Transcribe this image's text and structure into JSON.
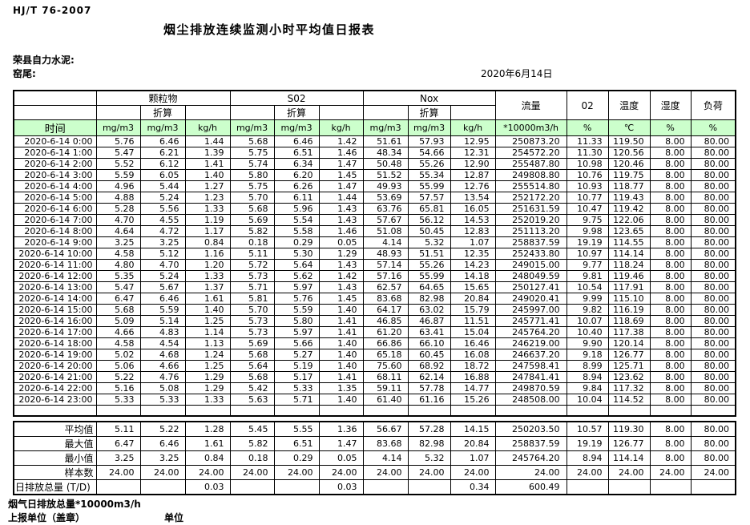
{
  "page": {
    "standard_code": "HJ/T  76-2007",
    "title": "烟尘排放连续监测小时平均值日报表",
    "company": "荣县自力水泥:",
    "site": "窑尾:",
    "date": "2020年6月14日"
  },
  "table": {
    "time_header": "时间",
    "groups": [
      {
        "label": "颗粒物",
        "sub": "折算"
      },
      {
        "label": "S02",
        "sub": "折算"
      },
      {
        "label": "Nox",
        "sub": "折算"
      }
    ],
    "single_columns": [
      "流量",
      "02",
      "温度",
      "湿度",
      "负荷"
    ],
    "units": [
      "mg/m3",
      "mg/m3",
      "kg/h",
      "mg/m3",
      "mg/m3",
      "kg/h",
      "mg/m3",
      "mg/m3",
      "kg/h",
      "*10000m3/h",
      "%",
      "℃",
      "%",
      "%"
    ],
    "rows": [
      {
        "time": "2020-6-14 0:00",
        "values": [
          "5.76",
          "6.46",
          "1.44",
          "5.68",
          "6.46",
          "1.42",
          "51.61",
          "57.93",
          "12.95",
          "250873.20",
          "11.33",
          "119.50",
          "8.00",
          "80.00"
        ]
      },
      {
        "time": "2020-6-14 1:00",
        "values": [
          "5.47",
          "6.21",
          "1.39",
          "5.75",
          "6.51",
          "1.46",
          "48.34",
          "54.66",
          "12.31",
          "254572.20",
          "11.30",
          "120.56",
          "8.00",
          "80.00"
        ]
      },
      {
        "time": "2020-6-14 2:00",
        "values": [
          "5.52",
          "6.12",
          "1.41",
          "5.74",
          "6.34",
          "1.47",
          "50.48",
          "55.26",
          "12.90",
          "255487.80",
          "10.98",
          "120.46",
          "8.00",
          "80.00"
        ]
      },
      {
        "time": "2020-6-14 3:00",
        "values": [
          "5.59",
          "6.05",
          "1.40",
          "5.80",
          "6.20",
          "1.45",
          "51.52",
          "55.34",
          "12.87",
          "249808.80",
          "10.76",
          "119.75",
          "8.00",
          "80.00"
        ]
      },
      {
        "time": "2020-6-14 4:00",
        "values": [
          "4.96",
          "5.44",
          "1.27",
          "5.75",
          "6.26",
          "1.47",
          "49.93",
          "55.99",
          "12.76",
          "255514.80",
          "10.93",
          "118.77",
          "8.00",
          "80.00"
        ]
      },
      {
        "time": "2020-6-14 5:00",
        "values": [
          "4.88",
          "5.24",
          "1.23",
          "5.70",
          "6.11",
          "1.44",
          "53.69",
          "57.57",
          "13.54",
          "252172.20",
          "10.77",
          "119.43",
          "8.00",
          "80.00"
        ]
      },
      {
        "time": "2020-6-14 6:00",
        "values": [
          "5.28",
          "5.56",
          "1.33",
          "5.68",
          "5.96",
          "1.43",
          "63.76",
          "65.81",
          "16.05",
          "251631.59",
          "10.47",
          "119.42",
          "8.00",
          "80.00"
        ]
      },
      {
        "time": "2020-6-14 7:00",
        "values": [
          "4.70",
          "4.55",
          "1.19",
          "5.69",
          "5.54",
          "1.43",
          "57.67",
          "56.12",
          "14.53",
          "252019.20",
          "9.75",
          "122.06",
          "8.00",
          "80.00"
        ]
      },
      {
        "time": "2020-6-14 8:00",
        "values": [
          "4.64",
          "4.72",
          "1.17",
          "5.82",
          "5.58",
          "1.46",
          "51.08",
          "50.45",
          "12.83",
          "251113.20",
          "9.98",
          "123.65",
          "8.00",
          "80.00"
        ]
      },
      {
        "time": "2020-6-14 9:00",
        "values": [
          "3.25",
          "3.25",
          "0.84",
          "0.18",
          "0.29",
          "0.05",
          "4.14",
          "5.32",
          "1.07",
          "258837.59",
          "19.19",
          "114.55",
          "8.00",
          "80.00"
        ]
      },
      {
        "time": "2020-6-14 10:00",
        "values": [
          "4.58",
          "5.12",
          "1.16",
          "5.11",
          "5.30",
          "1.29",
          "48.93",
          "51.51",
          "12.35",
          "252433.80",
          "10.97",
          "114.14",
          "8.00",
          "80.00"
        ]
      },
      {
        "time": "2020-6-14 11:00",
        "values": [
          "4.80",
          "4.70",
          "1.20",
          "5.72",
          "5.64",
          "1.43",
          "57.14",
          "55.26",
          "14.23",
          "249015.00",
          "9.77",
          "118.24",
          "8.00",
          "80.00"
        ]
      },
      {
        "time": "2020-6-14 12:00",
        "values": [
          "5.35",
          "5.24",
          "1.33",
          "5.73",
          "5.62",
          "1.42",
          "57.16",
          "55.99",
          "14.18",
          "248049.59",
          "9.81",
          "119.46",
          "8.00",
          "80.00"
        ]
      },
      {
        "time": "2020-6-14 13:00",
        "values": [
          "5.47",
          "5.67",
          "1.37",
          "5.71",
          "5.97",
          "1.43",
          "62.57",
          "64.65",
          "15.65",
          "250127.41",
          "10.54",
          "117.91",
          "8.00",
          "80.00"
        ]
      },
      {
        "time": "2020-6-14 14:00",
        "values": [
          "6.47",
          "6.46",
          "1.61",
          "5.81",
          "5.76",
          "1.45",
          "83.68",
          "82.98",
          "20.84",
          "249020.41",
          "9.99",
          "115.10",
          "8.00",
          "80.00"
        ]
      },
      {
        "time": "2020-6-14 15:00",
        "values": [
          "5.68",
          "5.59",
          "1.40",
          "5.70",
          "5.59",
          "1.40",
          "64.17",
          "63.02",
          "15.79",
          "245997.00",
          "9.82",
          "116.19",
          "8.00",
          "80.00"
        ]
      },
      {
        "time": "2020-6-14 16:00",
        "values": [
          "5.09",
          "5.14",
          "1.25",
          "5.73",
          "5.80",
          "1.41",
          "46.85",
          "46.87",
          "11.51",
          "245771.41",
          "10.07",
          "118.69",
          "8.00",
          "80.00"
        ]
      },
      {
        "time": "2020-6-14 17:00",
        "values": [
          "4.66",
          "4.83",
          "1.14",
          "5.73",
          "5.97",
          "1.41",
          "61.20",
          "63.41",
          "15.04",
          "245764.20",
          "10.40",
          "117.38",
          "8.00",
          "80.00"
        ]
      },
      {
        "time": "2020-6-14 18:00",
        "values": [
          "4.58",
          "4.54",
          "1.13",
          "5.69",
          "5.66",
          "1.40",
          "66.86",
          "66.10",
          "16.46",
          "246219.00",
          "9.90",
          "120.14",
          "8.00",
          "80.00"
        ]
      },
      {
        "time": "2020-6-14 19:00",
        "values": [
          "5.02",
          "4.68",
          "1.24",
          "5.68",
          "5.27",
          "1.40",
          "65.18",
          "60.45",
          "16.08",
          "246637.20",
          "9.18",
          "126.77",
          "8.00",
          "80.00"
        ]
      },
      {
        "time": "2020-6-14 20:00",
        "values": [
          "5.06",
          "4.66",
          "1.25",
          "5.64",
          "5.19",
          "1.40",
          "75.60",
          "68.92",
          "18.72",
          "247598.41",
          "8.99",
          "125.71",
          "8.00",
          "80.00"
        ]
      },
      {
        "time": "2020-6-14 21:00",
        "values": [
          "5.22",
          "4.76",
          "1.29",
          "5.68",
          "5.17",
          "1.41",
          "68.11",
          "62.14",
          "16.88",
          "247841.41",
          "8.94",
          "123.62",
          "8.00",
          "80.00"
        ]
      },
      {
        "time": "2020-6-14 22:00",
        "values": [
          "5.16",
          "5.08",
          "1.29",
          "5.42",
          "5.33",
          "1.35",
          "59.11",
          "57.78",
          "14.77",
          "249870.59",
          "9.84",
          "117.32",
          "8.00",
          "80.00"
        ]
      },
      {
        "time": "2020-6-14 23:00",
        "values": [
          "5.33",
          "5.33",
          "1.33",
          "5.63",
          "5.71",
          "1.40",
          "61.40",
          "61.16",
          "15.26",
          "248508.00",
          "10.04",
          "114.52",
          "8.00",
          "80.00"
        ]
      }
    ],
    "summary": [
      {
        "label": "平均值",
        "values": [
          "5.11",
          "5.22",
          "1.28",
          "5.45",
          "5.55",
          "1.36",
          "56.67",
          "57.28",
          "14.15",
          "250203.50",
          "10.57",
          "119.30",
          "8.00",
          "80.00"
        ]
      },
      {
        "label": "最大值",
        "values": [
          "6.47",
          "6.46",
          "1.61",
          "5.82",
          "6.51",
          "1.47",
          "83.68",
          "82.98",
          "20.84",
          "258837.59",
          "19.19",
          "126.77",
          "8.00",
          "80.00"
        ]
      },
      {
        "label": "最小值",
        "values": [
          "3.25",
          "3.25",
          "0.84",
          "0.18",
          "0.29",
          "0.05",
          "4.14",
          "5.32",
          "1.07",
          "245764.20",
          "8.94",
          "114.14",
          "8.00",
          "80.00"
        ]
      },
      {
        "label": "样本数",
        "values": [
          "24.00",
          "24.00",
          "24.00",
          "24.00",
          "24.00",
          "24.00",
          "24.00",
          "24.00",
          "24.00",
          "24.00",
          "24.00",
          "24.00",
          "24.00",
          "24.00"
        ]
      },
      {
        "label": "日排放总量 (T/D)",
        "label_align": "left",
        "values": [
          "",
          "",
          "0.03",
          "",
          "",
          "0.03",
          "",
          "",
          "0.34",
          "600.49",
          "",
          "",
          "",
          ""
        ]
      }
    ]
  },
  "footer": {
    "flow_total_label": "烟气日排放总量*10000m3/h",
    "report_unit_label": "上报单位（盖章）",
    "unit_label": "单位"
  }
}
